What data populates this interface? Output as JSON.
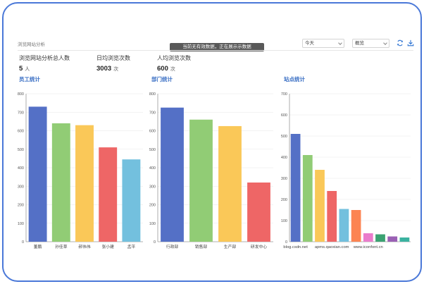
{
  "page": {
    "title": "浏览网站分析",
    "toast": "当前无有效数据，正在展示示数据"
  },
  "filters": {
    "range": {
      "value": "今天"
    },
    "view": {
      "value": "概览"
    }
  },
  "icons": {
    "refresh": "refresh-icon",
    "download": "download-icon"
  },
  "stats": [
    {
      "label": "浏览网站分析总人数",
      "value": "5",
      "unit": "人"
    },
    {
      "label": "日均浏览次数",
      "value": "3003",
      "unit": "次"
    },
    {
      "label": "人均浏览次数",
      "value": "600",
      "unit": "次"
    }
  ],
  "sections": {
    "employee": "员工统计",
    "department": "部门统计",
    "site": "站点统计"
  },
  "colors": [
    "#5470c6",
    "#91cc75",
    "#fac858",
    "#ee6666",
    "#73c0de",
    "#3ba272",
    "#fc8452",
    "#9a60b4",
    "#ea7ccc"
  ],
  "chart_data": [
    {
      "type": "bar",
      "title": "员工统计",
      "categories": [
        "董鹏",
        "孙佳草",
        "郝伟伟",
        "张小建",
        "孟平"
      ],
      "values": [
        730,
        640,
        630,
        510,
        445
      ],
      "ylim": [
        0,
        800
      ],
      "yticks": [
        0,
        100,
        200,
        300,
        400,
        500,
        600,
        700,
        800
      ],
      "grid": true,
      "colors": [
        "#5470c6",
        "#91cc75",
        "#fac858",
        "#ee6666",
        "#73c0de"
      ]
    },
    {
      "type": "bar",
      "title": "部门统计",
      "categories": [
        "行政部",
        "销售部",
        "生产部",
        "研发中心"
      ],
      "values": [
        725,
        660,
        625,
        320
      ],
      "ylim": [
        0,
        800
      ],
      "yticks": [
        0,
        100,
        200,
        300,
        400,
        500,
        600,
        700,
        800
      ],
      "grid": true,
      "colors": [
        "#5470c6",
        "#91cc75",
        "#fac858",
        "#ee6666"
      ]
    },
    {
      "type": "bar",
      "title": "站点统计",
      "categories": [
        "blog.csdn.net",
        "",
        "",
        "apms.qaoxian.com",
        "",
        "",
        "www.iconfont.cn",
        "",
        "",
        ""
      ],
      "values": [
        510,
        410,
        340,
        240,
        155,
        150,
        40,
        35,
        25,
        20
      ],
      "ylim": [
        0,
        700
      ],
      "yticks": [
        0,
        100,
        200,
        300,
        400,
        500,
        600,
        700
      ],
      "grid": true,
      "colors": [
        "#5470c6",
        "#91cc75",
        "#fac858",
        "#ee6666",
        "#73c0de",
        "#fc8452",
        "#ea7ccc",
        "#3ba272",
        "#9a60b4",
        "#3bb2a0"
      ]
    }
  ]
}
